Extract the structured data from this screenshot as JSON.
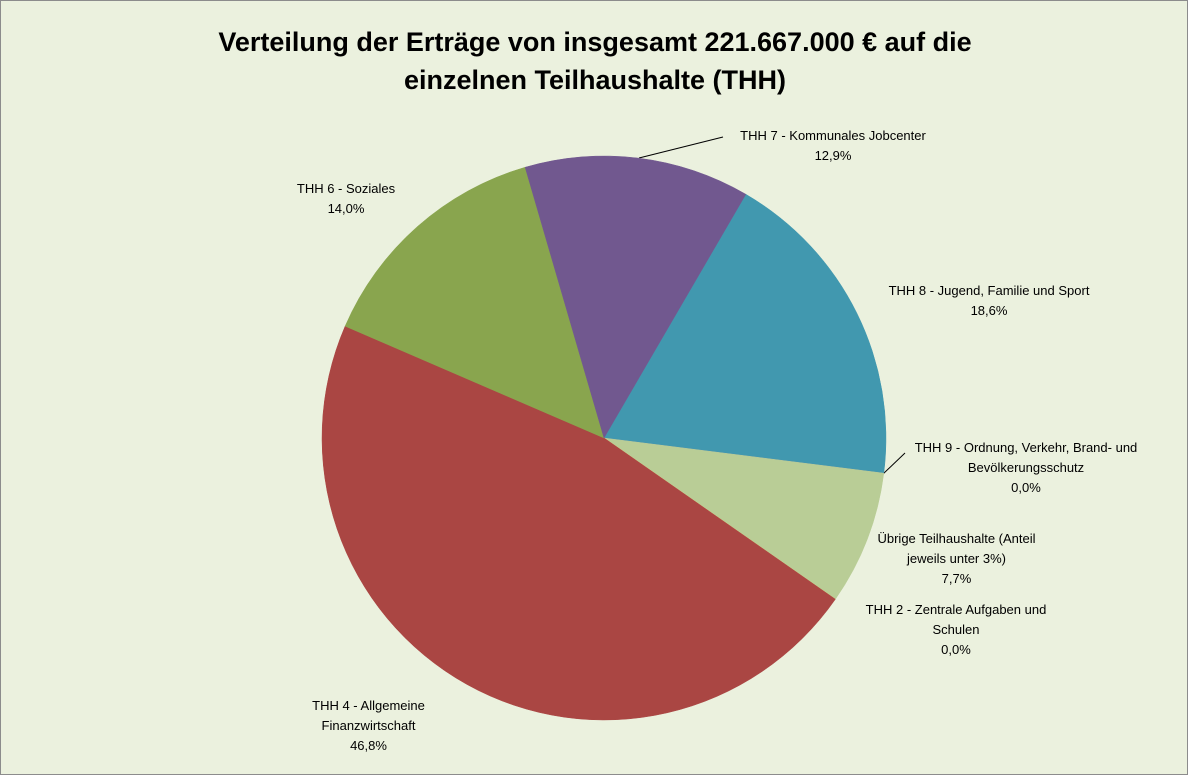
{
  "chart_data": {
    "type": "pie",
    "title": "Verteilung der Erträge von insgesamt 221.667.000 €  auf die einzelnen Teilhaushalte (THH)",
    "categories": [
      "THH 8 - Jugend, Familie und Sport",
      "THH 9 - Ordnung, Verkehr, Brand- und Bevölkerungsschutz",
      "Übrige Teilhaushalte (Anteil jeweils unter 3%)",
      "THH 2 - Zentrale Aufgaben und Schulen",
      "THH 4 - Allgemeine Finanzwirtschaft",
      "THH 6 - Soziales",
      "THH 7 - Kommunales Jobcenter"
    ],
    "values": [
      18.6,
      0.0,
      7.7,
      0.0,
      46.8,
      14.0,
      12.9
    ],
    "value_labels": [
      "18,6%",
      "0,0%",
      "7,7%",
      "0,0%",
      "46,8%",
      "14,0%",
      "12,9%"
    ],
    "colors": [
      "#4198af",
      "#4f81bd",
      "#b9cd96",
      "#f79646",
      "#aa4643",
      "#89a54e",
      "#71588f"
    ]
  }
}
